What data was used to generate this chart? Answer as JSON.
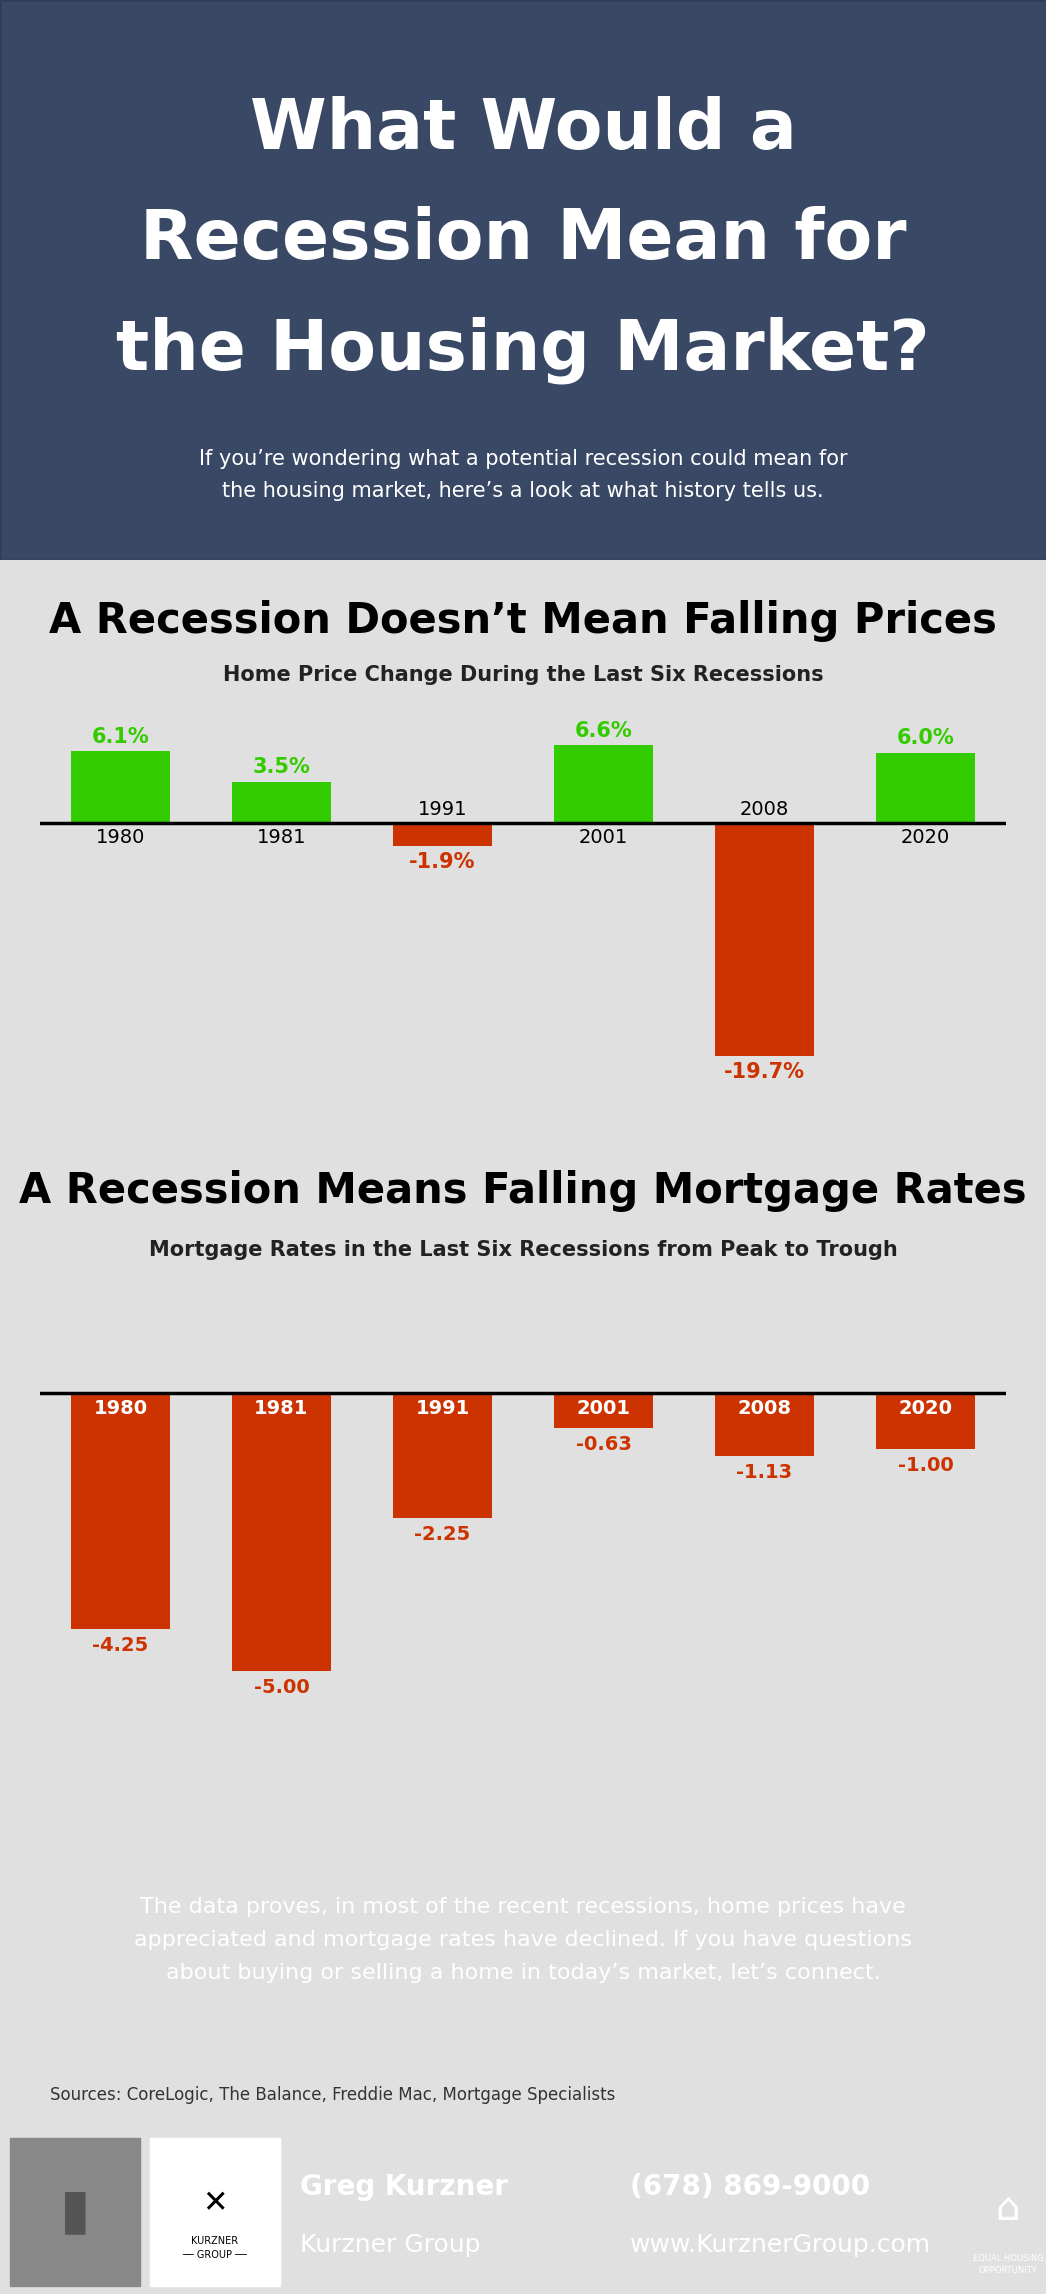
{
  "title_line1": "What Would a",
  "title_line2": "Recession Mean for",
  "title_line3": "the Housing Market?",
  "subtitle": "If you’re wondering what a potential recession could mean for\nthe housing market, here’s a look at what history tells us.",
  "section1_title": "A Recession Doesn’t Mean Falling Prices",
  "section1_subtitle": "Home Price Change During the Last Six Recessions",
  "price_years": [
    "1980",
    "1981",
    "1991",
    "2001",
    "2008",
    "2020"
  ],
  "price_values": [
    6.1,
    3.5,
    -1.9,
    6.6,
    -19.7,
    6.0
  ],
  "price_labels": [
    "6.1%",
    "3.5%",
    "-1.9%",
    "6.6%",
    "-19.7%",
    "6.0%"
  ],
  "price_colors_pos": "#33cc00",
  "price_colors_neg": "#cc3300",
  "section2_title": "A Recession Means Falling Mortgage Rates",
  "section2_subtitle": "Mortgage Rates in the Last Six Recessions from Peak to Trough",
  "mortgage_years": [
    "1980",
    "1981",
    "1991",
    "2001",
    "2008",
    "2020"
  ],
  "mortgage_values": [
    -4.25,
    -5.0,
    -2.25,
    -0.63,
    -1.13,
    -1.0
  ],
  "mortgage_labels": [
    "-4.25",
    "-5.00",
    "-2.25",
    "-0.63",
    "-1.13",
    "-1.00"
  ],
  "mortgage_color": "#cc3300",
  "footer_text": "The data proves, in most of the recent recessions, home prices have\nappreciated and mortgage rates have declined. If you have questions\nabout buying or selling a home in today’s market, let’s connect.",
  "sources_text": "Sources: CoreLogic, The Balance, Freddie Mac, Mortgage Specialists",
  "agent_name": "Greg Kurzner",
  "agent_company": "Kurzner Group",
  "agent_phone": "(678) 869-9000",
  "agent_website": "www.KurznerGroup.com",
  "header_bg": "#1c2d50",
  "content_bg": "#e0e0e0",
  "footer_bg": "#44bb00",
  "bottom_bar_bg": "#111111"
}
